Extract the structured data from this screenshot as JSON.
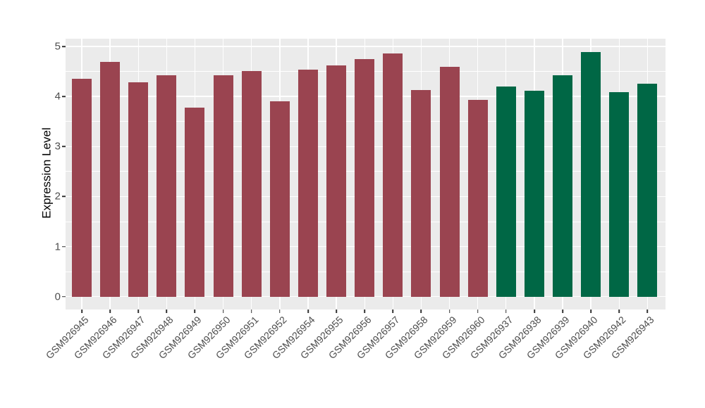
{
  "chart_data": {
    "type": "bar",
    "title": "",
    "xlabel": "",
    "ylabel": "Expression Level",
    "yticks": [
      0,
      1,
      2,
      3,
      4,
      5
    ],
    "y_minor_ticks": [
      0.5,
      1.5,
      2.5,
      3.5,
      4.5
    ],
    "ylim": [
      -0.25,
      5.16
    ],
    "grid": "on",
    "legend": "none",
    "panel_background_color": "#EBEBEB",
    "grid_color": "#FFFFFF",
    "axis_text_color": "#4D4D4D",
    "group_colors": {
      "maroon": "#9A4450",
      "green": "#006745"
    },
    "bars": [
      {
        "label": "GSM926945",
        "value": 4.35,
        "group": "maroon"
      },
      {
        "label": "GSM926946",
        "value": 4.69,
        "group": "maroon"
      },
      {
        "label": "GSM926947",
        "value": 4.28,
        "group": "maroon"
      },
      {
        "label": "GSM926948",
        "value": 4.42,
        "group": "maroon"
      },
      {
        "label": "GSM926949",
        "value": 3.78,
        "group": "maroon"
      },
      {
        "label": "GSM926950",
        "value": 4.43,
        "group": "maroon"
      },
      {
        "label": "GSM926951",
        "value": 4.51,
        "group": "maroon"
      },
      {
        "label": "GSM926952",
        "value": 3.9,
        "group": "maroon"
      },
      {
        "label": "GSM926954",
        "value": 4.53,
        "group": "maroon"
      },
      {
        "label": "GSM926955",
        "value": 4.62,
        "group": "maroon"
      },
      {
        "label": "GSM926956",
        "value": 4.75,
        "group": "maroon"
      },
      {
        "label": "GSM926957",
        "value": 4.86,
        "group": "maroon"
      },
      {
        "label": "GSM926958",
        "value": 4.13,
        "group": "maroon"
      },
      {
        "label": "GSM926959",
        "value": 4.59,
        "group": "maroon"
      },
      {
        "label": "GSM926960",
        "value": 3.93,
        "group": "maroon"
      },
      {
        "label": "GSM926937",
        "value": 4.2,
        "group": "green"
      },
      {
        "label": "GSM926938",
        "value": 4.11,
        "group": "green"
      },
      {
        "label": "GSM926939",
        "value": 4.42,
        "group": "green"
      },
      {
        "label": "GSM926940",
        "value": 4.89,
        "group": "green"
      },
      {
        "label": "GSM926942",
        "value": 4.09,
        "group": "green"
      },
      {
        "label": "GSM926943",
        "value": 4.26,
        "group": "green"
      }
    ]
  }
}
